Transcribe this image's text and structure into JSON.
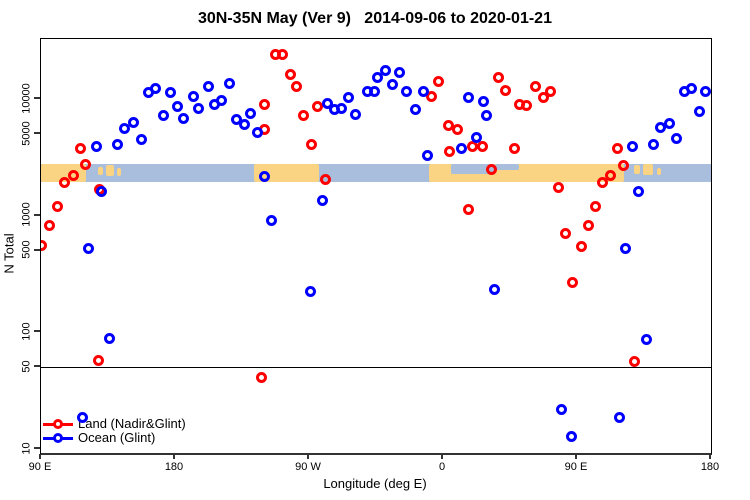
{
  "chart_data": {
    "type": "scatter",
    "title": "30N-35N May (Ver 9)   2014-09-06 to 2020-01-21",
    "xlabel": "Longitude (deg E)",
    "ylabel": "N Total",
    "x_axis": {
      "note": "longitude in deg E, unwrapped along axis: 90E eastward to 540 (=180 after wrap)",
      "min": 90,
      "max": 540,
      "ticks": [
        {
          "lon": 90,
          "label": "90 E"
        },
        {
          "lon": 180,
          "label": "180"
        },
        {
          "lon": 270,
          "label": "90 W"
        },
        {
          "lon": 360,
          "label": "0"
        },
        {
          "lon": 450,
          "label": "90 E"
        },
        {
          "lon": 540,
          "label": "180"
        }
      ]
    },
    "y_axis": {
      "scale": "log",
      "min": 9.3,
      "max": 32700,
      "ticks": [
        {
          "n": 10,
          "label": "10"
        },
        {
          "n": 50,
          "label": "50"
        },
        {
          "n": 100,
          "label": "100"
        },
        {
          "n": 500,
          "label": "500"
        },
        {
          "n": 1000,
          "label": "1000"
        },
        {
          "n": 5000,
          "label": "5000"
        },
        {
          "n": 10000,
          "label": "10000"
        }
      ]
    },
    "reference_line_n": 50,
    "grid": false,
    "legend_position": "bottom-left",
    "map_band": {
      "description": "world-map strip of the 30N-35N latitude band drawn across the plot",
      "ocean_color": "#a9bedd",
      "land_color": "#fbd483",
      "n_top": 2770,
      "n_bottom": 1950,
      "land_segments": [
        {
          "lon0": 90,
          "lon1": 120.5,
          "top": 0,
          "h": 1
        },
        {
          "lon0": 128.5,
          "lon1": 131.5,
          "top": 0.15,
          "h": 0.45
        },
        {
          "lon0": 133.5,
          "lon1": 139,
          "top": 0.05,
          "h": 0.6
        },
        {
          "lon0": 141,
          "lon1": 144,
          "top": 0.25,
          "h": 0.4
        },
        {
          "lon0": 233,
          "lon1": 276.7,
          "top": 0,
          "h": 1
        },
        {
          "lon0": 350.5,
          "lon1": 481.5,
          "top": 0,
          "h": 1
        },
        {
          "lon0": 488,
          "lon1": 492,
          "top": 0.08,
          "h": 0.5
        },
        {
          "lon0": 494.5,
          "lon1": 501,
          "top": 0,
          "h": 0.6
        },
        {
          "lon0": 503.5,
          "lon1": 506.5,
          "top": 0.2,
          "h": 0.4
        }
      ],
      "ocean_overlays": [
        {
          "lon0": 365.5,
          "lon1": 395,
          "top": 0,
          "h": 0.55
        },
        {
          "lon0": 395,
          "lon1": 411,
          "top": 0,
          "h": 0.35
        }
      ]
    },
    "series": [
      {
        "name": "Land (Nadir&Glint)",
        "color": "#ff0000",
        "points": [
          [
            116.2,
            3730
          ],
          [
            120.2,
            2720
          ],
          [
            111.5,
            2230
          ],
          [
            106.1,
            1910
          ],
          [
            129.6,
            1690
          ],
          [
            247.8,
            24300
          ],
          [
            252.5,
            24300
          ],
          [
            257.9,
            16100
          ],
          [
            261.3,
            12700
          ],
          [
            240.4,
            8890
          ],
          [
            266.6,
            7150
          ],
          [
            275.4,
            8540
          ],
          [
            272.0,
            4040
          ],
          [
            281.4,
            2060
          ],
          [
            352.6,
            10600
          ],
          [
            357.3,
            14000
          ],
          [
            364.0,
            5870
          ],
          [
            370.0,
            5530
          ],
          [
            364.7,
            3580
          ],
          [
            380.1,
            3880
          ],
          [
            386.2,
            3880
          ],
          [
            407.7,
            3730
          ],
          [
            392.9,
            2510
          ],
          [
            240.4,
            5530
          ],
          [
            397.6,
            15400
          ],
          [
            402.3,
            11900
          ],
          [
            421.8,
            12700
          ],
          [
            427.8,
            10200
          ],
          [
            431.9,
            11500
          ],
          [
            411.7,
            8890
          ],
          [
            416.4,
            8710
          ],
          [
            437.9,
            1760
          ],
          [
            476.9,
            3730
          ],
          [
            480.9,
            2670
          ],
          [
            472.8,
            2230
          ],
          [
            467.4,
            1910
          ],
          [
            101.4,
            1210
          ],
          [
            96.0,
            820
          ],
          [
            90.0,
            550
          ],
          [
            376.8,
            1140
          ],
          [
            462.7,
            1190
          ],
          [
            457.4,
            820
          ],
          [
            442.6,
            710
          ],
          [
            452.7,
            540
          ],
          [
            447.3,
            270
          ],
          [
            128.3,
            57
          ],
          [
            238.4,
            41
          ],
          [
            488.3,
            56
          ]
        ]
      },
      {
        "name": "Ocean (Glint)",
        "color": "#0000ff",
        "points": [
          [
            162.5,
            11300
          ],
          [
            167.2,
            12400
          ],
          [
            177.3,
            11300
          ],
          [
            172.6,
            7290
          ],
          [
            182.0,
            8540
          ],
          [
            186.0,
            6740
          ],
          [
            192.1,
            10600
          ],
          [
            196.1,
            8370
          ],
          [
            202.2,
            12900
          ],
          [
            206.2,
            8890
          ],
          [
            210.9,
            9800
          ],
          [
            216.3,
            13700
          ],
          [
            221.6,
            6610
          ],
          [
            227.0,
            5990
          ],
          [
            231.0,
            7580
          ],
          [
            235.7,
            5210
          ],
          [
            146.4,
            5640
          ],
          [
            151.8,
            6230
          ],
          [
            141.7,
            4040
          ],
          [
            157.8,
            4540
          ],
          [
            127.6,
            3880
          ],
          [
            240.4,
            2150
          ],
          [
            315.7,
            15400
          ],
          [
            321.7,
            17700
          ],
          [
            331.1,
            17000
          ],
          [
            326.4,
            13400
          ],
          [
            309.0,
            11700
          ],
          [
            314.3,
            11500
          ],
          [
            296.2,
            10200
          ],
          [
            335.8,
            11500
          ],
          [
            347.2,
            11500
          ],
          [
            341.8,
            8050
          ],
          [
            282.1,
            9240
          ],
          [
            286.8,
            8050
          ],
          [
            292.1,
            8210
          ],
          [
            300.9,
            7430
          ],
          [
            376.8,
            10400
          ],
          [
            382.8,
            4720
          ],
          [
            349.9,
            3310
          ],
          [
            372.1,
            3730
          ],
          [
            387.5,
            9610
          ],
          [
            389.5,
            7150
          ],
          [
            521.9,
            11500
          ],
          [
            527.2,
            12400
          ],
          [
            536.6,
            11500
          ],
          [
            532.6,
            7740
          ],
          [
            506.4,
            5750
          ],
          [
            512.4,
            6110
          ],
          [
            516.5,
            4630
          ],
          [
            501.7,
            4040
          ],
          [
            487.6,
            3880
          ],
          [
            130.3,
            1600
          ],
          [
            122.2,
            518
          ],
          [
            136.3,
            89
          ],
          [
            279.4,
            1360
          ],
          [
            245.1,
            901
          ],
          [
            271.3,
            222
          ],
          [
            482.9,
            518
          ],
          [
            394.9,
            231
          ],
          [
            491.6,
            1600
          ],
          [
            497.0,
            86
          ],
          [
            439.9,
            22
          ],
          [
            478.8,
            18.5
          ],
          [
            446.6,
            12.7
          ],
          [
            118.2,
            18.5
          ]
        ]
      }
    ]
  }
}
